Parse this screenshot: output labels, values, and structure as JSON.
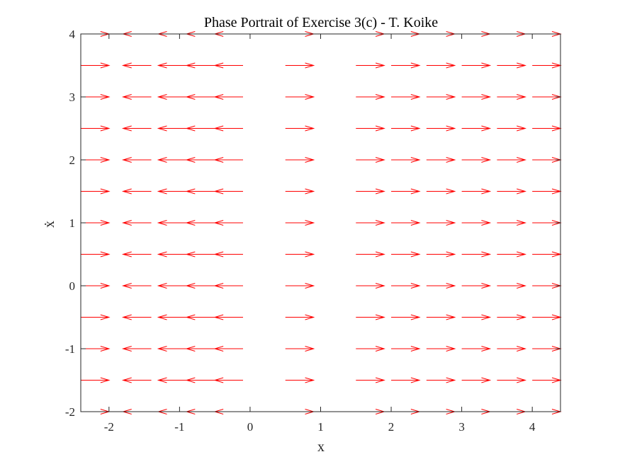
{
  "chart_data": {
    "type": "quiver",
    "title": "Phase Portrait of Exercise 3(c) - T. Koike",
    "xlabel": "x",
    "ylabel": "ẋ",
    "xlim": [
      -2.4,
      4.4
    ],
    "ylim": [
      -2,
      4
    ],
    "xticks": [
      -2,
      -1,
      0,
      1,
      2,
      3,
      4
    ],
    "yticks": [
      -2,
      -1,
      0,
      1,
      2,
      3,
      4
    ],
    "xtick_labels": [
      "-2",
      "-1",
      "0",
      "1",
      "2",
      "3",
      "4"
    ],
    "ytick_labels": [
      "-2",
      "-1",
      "0",
      "1",
      "2",
      "3",
      "4"
    ],
    "grid": false,
    "arrow_color": "#ff0000",
    "arrow_rows_y": [
      -2,
      -1.5,
      -1,
      -0.5,
      0,
      0.5,
      1,
      1.5,
      2,
      2.5,
      3,
      3.5,
      4
    ],
    "arrow_columns": [
      {
        "x_start": -2.4,
        "dx": 0.4
      },
      {
        "x_start": -1.4,
        "dx": -0.4
      },
      {
        "x_start": -0.9,
        "dx": -0.4
      },
      {
        "x_start": -0.5,
        "dx": -0.4
      },
      {
        "x_start": -0.1,
        "dx": -0.4
      },
      {
        "x_start": 0.5,
        "dx": 0.4
      },
      {
        "x_start": 1.5,
        "dx": 0.4
      },
      {
        "x_start": 2.0,
        "dx": 0.4
      },
      {
        "x_start": 2.5,
        "dx": 0.4
      },
      {
        "x_start": 3.0,
        "dx": 0.4
      },
      {
        "x_start": 3.5,
        "dx": 0.4
      },
      {
        "x_start": 4.0,
        "dx": 0.4
      }
    ]
  }
}
